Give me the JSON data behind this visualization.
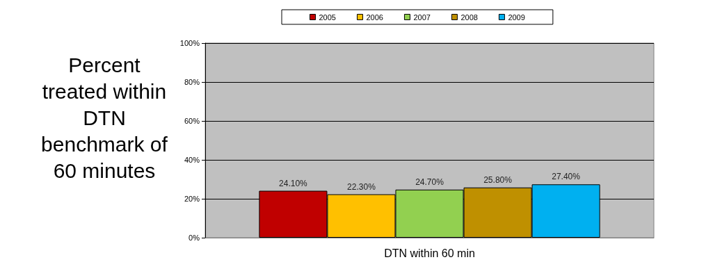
{
  "chart_data": {
    "type": "bar",
    "ylabel": "Percent treated within DTN benchmark of 60 minutes",
    "categories": [
      "DTN within 60 min"
    ],
    "series": [
      {
        "name": "2005",
        "color": "#c00000",
        "values": [
          24.1
        ],
        "value_labels": [
          "24.10%"
        ]
      },
      {
        "name": "2006",
        "color": "#ffc000",
        "values": [
          22.3
        ],
        "value_labels": [
          "22.30%"
        ]
      },
      {
        "name": "2007",
        "color": "#92d050",
        "values": [
          24.7
        ],
        "value_labels": [
          "24.70%"
        ]
      },
      {
        "name": "2008",
        "color": "#bf9000",
        "values": [
          25.8
        ],
        "value_labels": [
          "25.80%"
        ]
      },
      {
        "name": "2009",
        "color": "#00b0f0",
        "values": [
          27.4
        ],
        "value_labels": [
          "27.40%"
        ]
      }
    ],
    "ylim": [
      0,
      100
    ],
    "yticks": [
      {
        "value": 0,
        "label": "0%"
      },
      {
        "value": 20,
        "label": "20%"
      },
      {
        "value": 40,
        "label": "40%"
      },
      {
        "value": 60,
        "label": "60%"
      },
      {
        "value": 80,
        "label": "80%"
      },
      {
        "value": 100,
        "label": "100%"
      }
    ],
    "grid": "y",
    "legend": "top"
  }
}
